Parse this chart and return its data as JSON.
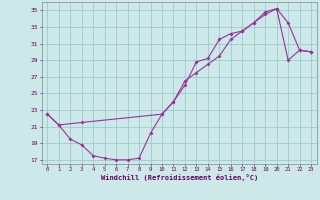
{
  "xlabel": "Windchill (Refroidissement éolien,°C)",
  "bg_color": "#cce8e8",
  "grid_color": "#99cccc",
  "line_color": "#993399",
  "xlim": [
    -0.5,
    23.5
  ],
  "ylim": [
    16.5,
    36
  ],
  "xticks": [
    0,
    1,
    2,
    3,
    4,
    5,
    6,
    7,
    8,
    9,
    10,
    11,
    12,
    13,
    14,
    15,
    16,
    17,
    18,
    19,
    20,
    21,
    22,
    23
  ],
  "yticks": [
    17,
    19,
    21,
    23,
    25,
    27,
    29,
    31,
    33,
    35
  ],
  "line1_x": [
    0,
    1,
    2,
    3,
    4,
    5,
    6,
    7,
    8,
    9,
    10,
    11,
    12,
    13,
    14,
    15,
    16,
    17,
    18,
    19,
    20,
    21,
    22,
    23
  ],
  "line1_y": [
    22.5,
    21.2,
    19.5,
    18.8,
    17.5,
    17.2,
    17.0,
    17.0,
    17.2,
    20.2,
    22.5,
    24.0,
    26.0,
    28.8,
    29.2,
    31.5,
    32.2,
    32.5,
    33.5,
    34.8,
    35.2,
    33.5,
    30.2,
    30.0
  ],
  "line2_x": [
    0,
    1,
    3,
    10,
    11,
    12,
    13,
    14,
    15,
    16,
    17,
    18,
    19,
    20,
    21,
    22,
    23
  ],
  "line2_y": [
    22.5,
    21.2,
    21.5,
    22.5,
    24.0,
    26.5,
    27.5,
    28.5,
    29.5,
    31.5,
    32.5,
    33.5,
    34.5,
    35.2,
    29.0,
    30.2,
    30.0
  ]
}
